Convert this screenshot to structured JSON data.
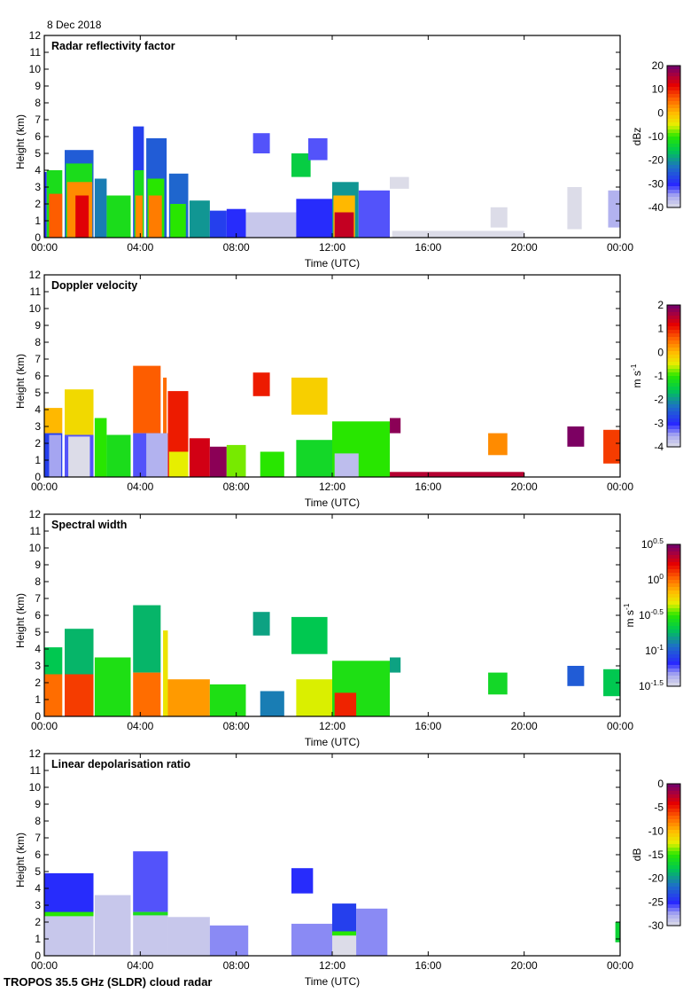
{
  "header": {
    "date": "8 Dec 2018"
  },
  "footer": {
    "instrument": "TROPOS 35.5 GHz (SLDR) cloud radar"
  },
  "chart_data": [
    {
      "type": "heatmap",
      "title": "Radar reflectivity factor",
      "xlabel": "Time (UTC)",
      "ylabel": "Height (km)",
      "x_ticks": [
        "00:00",
        "04:00",
        "08:00",
        "12:00",
        "16:00",
        "20:00",
        "00:00"
      ],
      "y_ticks": [
        0,
        1,
        2,
        3,
        4,
        5,
        6,
        7,
        8,
        9,
        10,
        11,
        12
      ],
      "xlim_hours": [
        0,
        24
      ],
      "ylim_km": [
        0,
        12
      ],
      "colorbar": {
        "label": "dBz",
        "min": -40,
        "max": 20,
        "ticks": [
          "20",
          "10",
          "0",
          "-10",
          "-20",
          "-30",
          "-40"
        ],
        "colormap": "rainbow"
      },
      "regions": [
        {
          "t0": 0.0,
          "t1": 0.1,
          "h0": 0,
          "h1": 3.9,
          "v": -30
        },
        {
          "t0": 0.1,
          "t1": 0.75,
          "h0": 0,
          "h1": 4.0,
          "v": -12
        },
        {
          "t0": 0.2,
          "t1": 0.75,
          "h0": 0,
          "h1": 2.6,
          "v": 6
        },
        {
          "t0": 0.85,
          "t1": 2.05,
          "h0": 0,
          "h1": 5.2,
          "v": -25
        },
        {
          "t0": 0.9,
          "t1": 2.0,
          "h0": 0,
          "h1": 4.4,
          "v": -12
        },
        {
          "t0": 0.95,
          "t1": 2.0,
          "h0": 0,
          "h1": 3.3,
          "v": 3
        },
        {
          "t0": 1.3,
          "t1": 1.85,
          "h0": 0,
          "h1": 2.5,
          "v": 12
        },
        {
          "t0": 2.1,
          "t1": 2.6,
          "h0": 0,
          "h1": 3.5,
          "v": -22
        },
        {
          "t0": 2.6,
          "t1": 3.6,
          "h0": 0,
          "h1": 2.5,
          "v": -12
        },
        {
          "t0": 3.7,
          "t1": 4.15,
          "h0": 0,
          "h1": 6.6,
          "v": -28
        },
        {
          "t0": 3.75,
          "t1": 4.15,
          "h0": 0,
          "h1": 4.0,
          "v": -12
        },
        {
          "t0": 3.8,
          "t1": 4.1,
          "h0": 0,
          "h1": 2.5,
          "v": 3
        },
        {
          "t0": 4.25,
          "t1": 5.1,
          "h0": 0,
          "h1": 5.9,
          "v": -25
        },
        {
          "t0": 4.3,
          "t1": 5.0,
          "h0": 0,
          "h1": 3.5,
          "v": -10
        },
        {
          "t0": 4.35,
          "t1": 4.9,
          "h0": 0,
          "h1": 2.5,
          "v": 4
        },
        {
          "t0": 5.2,
          "t1": 6.0,
          "h0": 0,
          "h1": 3.8,
          "v": -24
        },
        {
          "t0": 5.25,
          "t1": 5.9,
          "h0": 0,
          "h1": 2.0,
          "v": -10
        },
        {
          "t0": 6.05,
          "t1": 6.9,
          "h0": 0,
          "h1": 2.2,
          "v": -20
        },
        {
          "t0": 6.9,
          "t1": 7.6,
          "h0": 0,
          "h1": 1.6,
          "v": -28
        },
        {
          "t0": 7.6,
          "t1": 8.4,
          "h0": 0,
          "h1": 1.7,
          "v": -30
        },
        {
          "t0": 8.4,
          "t1": 10.5,
          "h0": 0,
          "h1": 1.5,
          "v": -38
        },
        {
          "t0": 8.7,
          "t1": 9.4,
          "h0": 5.0,
          "h1": 6.2,
          "v": -32
        },
        {
          "t0": 10.3,
          "t1": 11.1,
          "h0": 3.6,
          "h1": 5.0,
          "v": -15
        },
        {
          "t0": 11.0,
          "t1": 11.8,
          "h0": 4.6,
          "h1": 5.9,
          "v": -32
        },
        {
          "t0": 10.5,
          "t1": 12.0,
          "h0": 0,
          "h1": 2.3,
          "v": -30
        },
        {
          "t0": 12.0,
          "t1": 13.1,
          "h0": 0,
          "h1": 3.3,
          "v": -20
        },
        {
          "t0": 12.05,
          "t1": 12.95,
          "h0": 0,
          "h1": 2.5,
          "v": 0
        },
        {
          "t0": 12.1,
          "t1": 12.9,
          "h0": 0,
          "h1": 1.5,
          "v": 14
        },
        {
          "t0": 13.1,
          "t1": 14.4,
          "h0": 0,
          "h1": 2.8,
          "v": -32
        },
        {
          "t0": 14.4,
          "t1": 15.2,
          "h0": 2.9,
          "h1": 3.6,
          "v": -40
        },
        {
          "t0": 14.5,
          "t1": 20.0,
          "h0": 0,
          "h1": 0.4,
          "v": -40
        },
        {
          "t0": 18.6,
          "t1": 19.3,
          "h0": 0.6,
          "h1": 1.8,
          "v": -40
        },
        {
          "t0": 21.8,
          "t1": 22.4,
          "h0": 0.5,
          "h1": 3.0,
          "v": -40
        },
        {
          "t0": 23.5,
          "t1": 24.0,
          "h0": 0.6,
          "h1": 2.8,
          "v": -36
        }
      ]
    },
    {
      "type": "heatmap",
      "title": "Doppler velocity",
      "xlabel": "Time (UTC)",
      "ylabel": "Height (km)",
      "x_ticks": [
        "00:00",
        "04:00",
        "08:00",
        "12:00",
        "16:00",
        "20:00",
        "00:00"
      ],
      "y_ticks": [
        0,
        1,
        2,
        3,
        4,
        5,
        6,
        7,
        8,
        9,
        10,
        11,
        12
      ],
      "xlim_hours": [
        0,
        24
      ],
      "ylim_km": [
        0,
        12
      ],
      "colorbar": {
        "label": "m s-1",
        "label_main": "m s",
        "label_sup": "-1",
        "min": -4,
        "max": 2,
        "ticks": [
          "2",
          "1",
          "0",
          "-1",
          "-2",
          "-3",
          "-4"
        ],
        "colormap": "rainbow"
      },
      "regions": [
        {
          "t0": 0.0,
          "t1": 0.75,
          "h0": 2.6,
          "h1": 4.1,
          "v": 0
        },
        {
          "t0": 0.0,
          "t1": 0.75,
          "h0": 0,
          "h1": 2.6,
          "v": -2.8
        },
        {
          "t0": 0.2,
          "t1": 0.7,
          "h0": 0,
          "h1": 2.5,
          "v": -3.5
        },
        {
          "t0": 0.85,
          "t1": 2.05,
          "h0": 2.5,
          "h1": 5.2,
          "v": -0.3
        },
        {
          "t0": 0.85,
          "t1": 2.05,
          "h0": 0,
          "h1": 2.5,
          "v": -3.2
        },
        {
          "t0": 1.0,
          "t1": 1.9,
          "h0": 0,
          "h1": 2.4,
          "v": -4
        },
        {
          "t0": 2.1,
          "t1": 2.6,
          "h0": 0,
          "h1": 3.5,
          "v": -1.0
        },
        {
          "t0": 2.6,
          "t1": 3.6,
          "h0": 0,
          "h1": 2.5,
          "v": -1.2
        },
        {
          "t0": 3.7,
          "t1": 4.85,
          "h0": 2.6,
          "h1": 6.6,
          "v": 0.6
        },
        {
          "t0": 3.7,
          "t1": 4.85,
          "h0": 0,
          "h1": 2.6,
          "v": -3.2
        },
        {
          "t0": 4.95,
          "t1": 5.1,
          "h0": 2.6,
          "h1": 5.9,
          "v": 0.5
        },
        {
          "t0": 4.95,
          "t1": 5.1,
          "h0": 0,
          "h1": 2.6,
          "v": -2.5
        },
        {
          "t0": 4.25,
          "t1": 5.15,
          "h0": 0,
          "h1": 2.6,
          "v": -3.6
        },
        {
          "t0": 5.15,
          "t1": 6.0,
          "h0": 0,
          "h1": 5.1,
          "v": 1.0
        },
        {
          "t0": 5.2,
          "t1": 6.0,
          "h0": 0,
          "h1": 1.5,
          "v": -0.5
        },
        {
          "t0": 6.05,
          "t1": 6.9,
          "h0": 0,
          "h1": 2.3,
          "v": 1.3
        },
        {
          "t0": 6.9,
          "t1": 7.6,
          "h0": 0,
          "h1": 1.8,
          "v": 1.8
        },
        {
          "t0": 7.6,
          "t1": 8.4,
          "h0": 0,
          "h1": 1.9,
          "v": -0.8
        },
        {
          "t0": 8.7,
          "t1": 9.4,
          "h0": 4.8,
          "h1": 6.2,
          "v": 1.0
        },
        {
          "t0": 9.0,
          "t1": 10.0,
          "h0": 0,
          "h1": 1.5,
          "v": -1.0
        },
        {
          "t0": 10.3,
          "t1": 11.8,
          "h0": 3.7,
          "h1": 5.9,
          "v": -0.2
        },
        {
          "t0": 10.5,
          "t1": 12.0,
          "h0": 0,
          "h1": 2.2,
          "v": -1.3
        },
        {
          "t0": 12.0,
          "t1": 14.4,
          "h0": 0,
          "h1": 3.3,
          "v": -1.0
        },
        {
          "t0": 12.1,
          "t1": 13.1,
          "h0": 0,
          "h1": 1.4,
          "v": -3.7
        },
        {
          "t0": 14.4,
          "t1": 14.85,
          "h0": 2.6,
          "h1": 3.5,
          "v": 1.8
        },
        {
          "t0": 14.4,
          "t1": 20.0,
          "h0": 0,
          "h1": 0.3,
          "v": 1.5
        },
        {
          "t0": 18.5,
          "t1": 19.3,
          "h0": 1.3,
          "h1": 2.6,
          "v": 0.3
        },
        {
          "t0": 21.8,
          "t1": 22.5,
          "h0": 1.8,
          "h1": 3.0,
          "v": 1.9
        },
        {
          "t0": 23.3,
          "t1": 24.0,
          "h0": 0.8,
          "h1": 2.8,
          "v": 0.8
        }
      ]
    },
    {
      "type": "heatmap",
      "title": "Spectral width",
      "xlabel": "Time (UTC)",
      "ylabel": "Height (km)",
      "x_ticks": [
        "00:00",
        "04:00",
        "08:00",
        "12:00",
        "16:00",
        "20:00",
        "00:00"
      ],
      "y_ticks": [
        0,
        1,
        2,
        3,
        4,
        5,
        6,
        7,
        8,
        9,
        10,
        11,
        12
      ],
      "xlim_hours": [
        0,
        24
      ],
      "ylim_km": [
        0,
        12
      ],
      "colorbar": {
        "label": "m s-1",
        "label_main": "m s",
        "label_sup": "-1",
        "min_log10": -1.5,
        "max_log10": 0.5,
        "ticks": [
          {
            "base": "10",
            "exp": "0.5"
          },
          {
            "base": "10",
            "exp": "0"
          },
          {
            "base": "10",
            "exp": "-0.5"
          },
          {
            "base": "10",
            "exp": "-1"
          },
          {
            "base": "10",
            "exp": "-1.5"
          }
        ],
        "colormap": "rainbow"
      },
      "regions": [
        {
          "t0": 0.0,
          "t1": 0.75,
          "h0": 2.5,
          "h1": 4.1,
          "v": -0.7
        },
        {
          "t0": 0.0,
          "t1": 0.75,
          "h0": 0,
          "h1": 2.5,
          "v": 0.0
        },
        {
          "t0": 0.85,
          "t1": 2.05,
          "h0": 2.5,
          "h1": 5.2,
          "v": -0.75
        },
        {
          "t0": 0.85,
          "t1": 2.05,
          "h0": 0,
          "h1": 2.5,
          "v": 0.1
        },
        {
          "t0": 2.1,
          "t1": 3.6,
          "h0": 0,
          "h1": 3.5,
          "v": -0.55
        },
        {
          "t0": 3.7,
          "t1": 4.85,
          "h0": 2.6,
          "h1": 6.6,
          "v": -0.75
        },
        {
          "t0": 3.7,
          "t1": 4.85,
          "h0": 0,
          "h1": 2.6,
          "v": 0.0
        },
        {
          "t0": 4.95,
          "t1": 5.15,
          "h0": 0,
          "h1": 5.1,
          "v": -0.3
        },
        {
          "t0": 5.15,
          "t1": 6.9,
          "h0": 0,
          "h1": 2.2,
          "v": -0.1
        },
        {
          "t0": 6.9,
          "t1": 8.4,
          "h0": 0,
          "h1": 1.9,
          "v": -0.55
        },
        {
          "t0": 8.7,
          "t1": 9.4,
          "h0": 4.8,
          "h1": 6.2,
          "v": -0.8
        },
        {
          "t0": 9.0,
          "t1": 10.0,
          "h0": 0,
          "h1": 1.5,
          "v": -0.9
        },
        {
          "t0": 10.3,
          "t1": 11.8,
          "h0": 3.7,
          "h1": 5.9,
          "v": -0.7
        },
        {
          "t0": 10.5,
          "t1": 12.0,
          "h0": 0,
          "h1": 2.2,
          "v": -0.35
        },
        {
          "t0": 12.0,
          "t1": 14.4,
          "h0": 0,
          "h1": 3.3,
          "v": -0.55
        },
        {
          "t0": 12.1,
          "t1": 13.0,
          "h0": 0,
          "h1": 1.4,
          "v": 0.15
        },
        {
          "t0": 14.4,
          "t1": 14.85,
          "h0": 2.6,
          "h1": 3.5,
          "v": -0.8
        },
        {
          "t0": 18.5,
          "t1": 19.3,
          "h0": 1.3,
          "h1": 2.6,
          "v": -0.6
        },
        {
          "t0": 21.8,
          "t1": 22.5,
          "h0": 1.8,
          "h1": 3.0,
          "v": -1.0
        },
        {
          "t0": 23.3,
          "t1": 24.0,
          "h0": 1.2,
          "h1": 2.8,
          "v": -0.7
        }
      ]
    },
    {
      "type": "heatmap",
      "title": "Linear depolarisation ratio",
      "xlabel": "Time (UTC)",
      "ylabel": "Height (km)",
      "x_ticks": [
        "00:00",
        "04:00",
        "08:00",
        "12:00",
        "16:00",
        "20:00",
        "00:00"
      ],
      "y_ticks": [
        0,
        1,
        2,
        3,
        4,
        5,
        6,
        7,
        8,
        9,
        10,
        11,
        12
      ],
      "xlim_hours": [
        0,
        24
      ],
      "ylim_km": [
        0,
        12
      ],
      "colorbar": {
        "label": "dB",
        "min": -30,
        "max": 0,
        "ticks": [
          "0",
          "-5",
          "-10",
          "-15",
          "-20",
          "-25",
          "-30"
        ],
        "colormap": "rainbow"
      },
      "regions": [
        {
          "t0": 0.0,
          "t1": 2.05,
          "h0": 2.5,
          "h1": 4.9,
          "v": -25
        },
        {
          "t0": 0.0,
          "t1": 2.05,
          "h0": 0,
          "h1": 2.5,
          "v": -29
        },
        {
          "t0": 0.0,
          "t1": 2.05,
          "h0": 2.35,
          "h1": 2.6,
          "v": -15
        },
        {
          "t0": 2.1,
          "t1": 3.6,
          "h0": 0,
          "h1": 3.6,
          "v": -29
        },
        {
          "t0": 3.7,
          "t1": 5.15,
          "h0": 2.6,
          "h1": 6.2,
          "v": -26
        },
        {
          "t0": 3.7,
          "t1": 5.15,
          "h0": 0,
          "h1": 2.6,
          "v": -29
        },
        {
          "t0": 3.7,
          "t1": 5.15,
          "h0": 2.4,
          "h1": 2.6,
          "v": -16
        },
        {
          "t0": 5.15,
          "t1": 6.9,
          "h0": 0,
          "h1": 2.3,
          "v": -29
        },
        {
          "t0": 6.9,
          "t1": 8.5,
          "h0": 0,
          "h1": 1.8,
          "v": -27
        },
        {
          "t0": 10.3,
          "t1": 11.2,
          "h0": 3.7,
          "h1": 5.2,
          "v": -25
        },
        {
          "t0": 10.3,
          "t1": 12.0,
          "h0": 0,
          "h1": 1.9,
          "v": -27
        },
        {
          "t0": 12.0,
          "t1": 13.0,
          "h0": 1.4,
          "h1": 3.1,
          "v": -24
        },
        {
          "t0": 12.0,
          "t1": 13.0,
          "h0": 0,
          "h1": 1.4,
          "v": -30
        },
        {
          "t0": 12.0,
          "t1": 13.0,
          "h0": 1.2,
          "h1": 1.45,
          "v": -15
        },
        {
          "t0": 13.0,
          "t1": 14.3,
          "h0": 0,
          "h1": 2.8,
          "v": -27
        },
        {
          "t0": 23.8,
          "t1": 24.0,
          "h0": 0.8,
          "h1": 2.0,
          "v": -17
        }
      ]
    }
  ]
}
